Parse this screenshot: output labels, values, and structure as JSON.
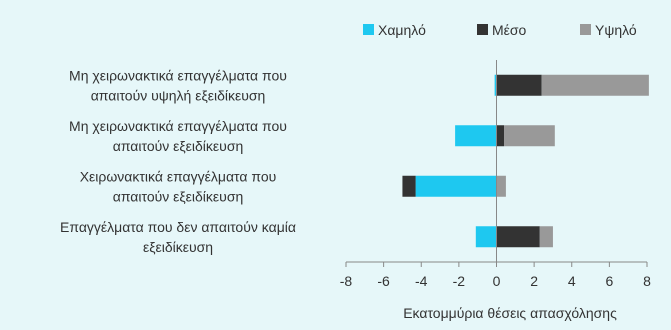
{
  "chart_data": {
    "type": "bar",
    "orientation": "horizontal",
    "stacked": true,
    "categories": [
      [
        "Μη χειρωνακτικά επαγγέλματα που",
        "απαιτούν υψηλή εξειδίκευση"
      ],
      [
        "Μη χειρωνακτικά επαγγέλματα που",
        "απαιτούν εξειδίκευση"
      ],
      [
        "Χειρωνακτικά επαγγέλματα που",
        "απαιτούν εξειδίκευση"
      ],
      [
        "Επαγγέλματα που δεν απαιτούν καμία",
        "εξειδίκευση"
      ]
    ],
    "series": [
      {
        "name": "Χαμηλό",
        "color": "#1ec8f0",
        "values": [
          -0.1,
          -2.2,
          -4.3,
          -1.1
        ]
      },
      {
        "name": "Μέσο",
        "color": "#333333",
        "values": [
          2.4,
          0.4,
          -0.7,
          2.3
        ]
      },
      {
        "name": "Υψηλό",
        "color": "#999999",
        "values": [
          5.7,
          2.7,
          0.5,
          0.7
        ]
      }
    ],
    "xlim": [
      -8,
      8
    ],
    "xticks": [
      "-8",
      "-6",
      "-4",
      "-2",
      "0",
      "2",
      "4",
      "6",
      "8"
    ],
    "xlabel": "Εκατομμύρια θέσεις απασχόλησης",
    "legend_position": "top",
    "grid": false
  }
}
